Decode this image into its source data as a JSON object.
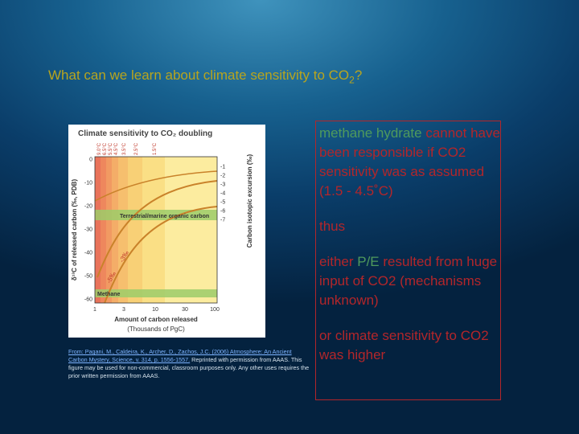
{
  "title": {
    "text": "What can we learn about climate sensitivity to CO",
    "subscript": "2",
    "suffix": "?"
  },
  "figure": {
    "title": "Climate sensitivity to CO₂ doubling",
    "y_label": "δ¹³C of released carbon (‰, PDB)",
    "y2_label": "Carbon isotopic excursion (‰)",
    "x_label": "Amount of carbon released",
    "x_units": "(Thousands of PgC)",
    "y_ticks": [
      "0",
      "-10",
      "-20",
      "-30",
      "-40",
      "-50",
      "-60"
    ],
    "y2_ticks": [
      "-1",
      "-2",
      "-3",
      "-4",
      "-5",
      "-6",
      "-7"
    ],
    "x_ticks": [
      "1",
      "3",
      "10",
      "30",
      "100"
    ],
    "sensitivity_labels": [
      "9.0°C",
      "6.5°C",
      "5.5°C",
      "4.5°C",
      "3.5°C",
      "2.5°C",
      "1.5°C"
    ],
    "curve_labels": [
      "-3‰",
      "-5‰"
    ],
    "band_labels": [
      "Terrestrial/marine organic carbon",
      "Methane"
    ]
  },
  "caption": {
    "citation": "From: Pagani, M., Caldeira, K., Archer, D., Zachos, J.C. (2006) Atmosphere: An Ancient Carbon Mystery, Science, v. 314, p. 1556-1557.",
    "text": " Reprinted with permission from AAAS. This figure may be used for non-commercial, classroom purposes only. Any other uses requires the prior written permission from AAAS."
  },
  "bullets": [
    [
      {
        "text": "methane hydrate",
        "tone": "green"
      },
      {
        "text": " cannot have been responsible if CO2 sensitivity was as assumed (1.5 - 4.5˚C)",
        "tone": "red"
      }
    ],
    [
      {
        "text": "thus",
        "tone": "red"
      }
    ],
    [
      {
        "text": "either ",
        "tone": "red"
      },
      {
        "text": "P/E",
        "tone": "green"
      },
      {
        "text": " resulted from huge input of CO2 (mechanisms unknown)",
        "tone": "red"
      }
    ],
    [
      {
        "text": "or climate sensitivity to CO2 was higher",
        "tone": "red"
      }
    ]
  ]
}
